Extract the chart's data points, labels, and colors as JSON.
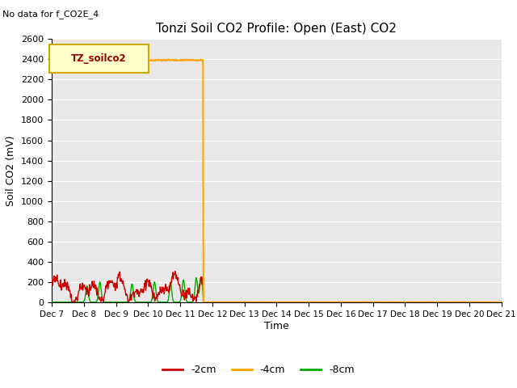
{
  "title": "Tonzi Soil CO2 Profile: Open (East) CO2",
  "no_data_text": "No data for f_CO2E_4",
  "ylabel": "Soil CO2 (mV)",
  "xlabel": "Time",
  "ylim": [
    0,
    2600
  ],
  "yticks": [
    0,
    200,
    400,
    600,
    800,
    1000,
    1200,
    1400,
    1600,
    1800,
    2000,
    2200,
    2400,
    2600
  ],
  "bg_color": "#e8e8e8",
  "legend_label": "TZ_soilco2",
  "legend_box_facecolor": "#ffffcc",
  "legend_box_edgecolor": "#ccaa00",
  "series_colors": [
    "#cc0000",
    "#ffa500",
    "#00aa00"
  ],
  "series_labels": [
    "-2cm",
    "-4cm",
    "-8cm"
  ],
  "x_tick_labels": [
    "Dec 7",
    "Dec 8",
    "Dec 9",
    "Dec 10",
    "Dec 11",
    "Dec 12",
    "Dec 13",
    "Dec 14",
    "Dec 15",
    "Dec 16",
    "Dec 17",
    "Dec 18",
    "Dec 19",
    "Dec 20",
    "Dec 21"
  ],
  "num_points": 1000,
  "figsize": [
    6.4,
    4.8
  ],
  "dpi": 100
}
